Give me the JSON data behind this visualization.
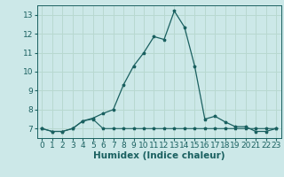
{
  "xlabel": "Humidex (Indice chaleur)",
  "bg_color": "#cce8e8",
  "grid_color": "#b8d8d0",
  "line_color": "#1a6060",
  "marker": "*",
  "xlim": [
    -0.5,
    23.5
  ],
  "ylim": [
    6.5,
    13.5
  ],
  "xticks": [
    0,
    1,
    2,
    3,
    4,
    5,
    6,
    7,
    8,
    9,
    10,
    11,
    12,
    13,
    14,
    15,
    16,
    17,
    18,
    19,
    20,
    21,
    22,
    23
  ],
  "yticks": [
    7,
    8,
    9,
    10,
    11,
    12,
    13
  ],
  "series1_x": [
    0,
    1,
    2,
    3,
    4,
    5,
    6,
    7,
    8,
    9,
    10,
    11,
    12,
    13,
    14,
    15,
    16,
    17,
    18,
    19,
    20,
    21,
    22,
    23
  ],
  "series1_y": [
    7.0,
    6.85,
    6.85,
    7.0,
    7.4,
    7.5,
    7.0,
    7.0,
    7.0,
    7.0,
    7.0,
    7.0,
    7.0,
    7.0,
    7.0,
    7.0,
    7.0,
    7.0,
    7.0,
    7.0,
    7.0,
    7.0,
    7.0,
    7.0
  ],
  "series2_x": [
    0,
    1,
    2,
    3,
    4,
    5,
    6,
    7,
    8,
    9,
    10,
    11,
    12,
    13,
    14,
    15,
    16,
    17,
    18,
    19,
    20,
    21,
    22,
    23
  ],
  "series2_y": [
    7.0,
    6.85,
    6.85,
    7.0,
    7.4,
    7.55,
    7.8,
    8.0,
    9.3,
    10.3,
    11.0,
    11.85,
    11.7,
    13.2,
    12.35,
    10.3,
    7.5,
    7.65,
    7.35,
    7.1,
    7.1,
    6.85,
    6.85,
    7.0
  ],
  "font_size": 6.5,
  "xlabel_fontsize": 7.5
}
